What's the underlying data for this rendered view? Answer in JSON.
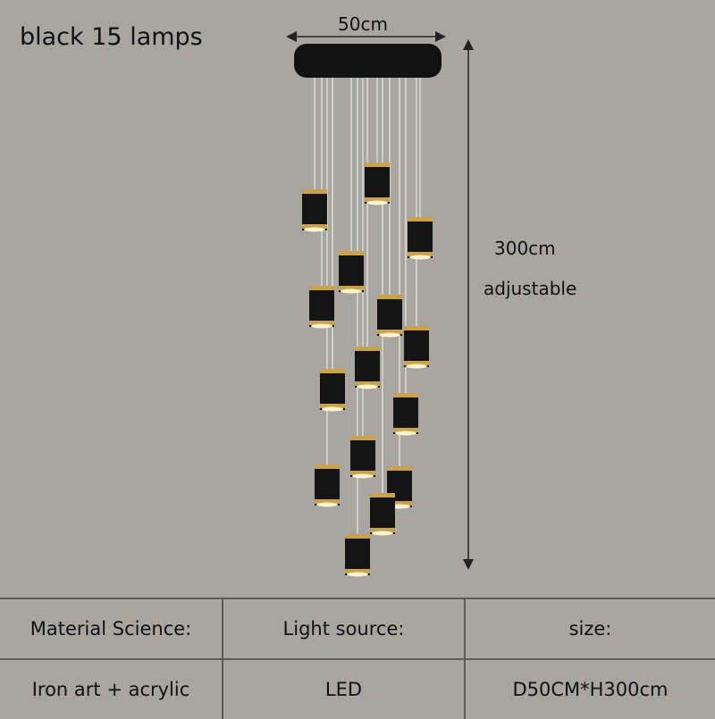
{
  "title": "black 15 lamps",
  "dimensions": {
    "width": "50cm",
    "height": "300cm",
    "height_note": "adjustable"
  },
  "product": {
    "color": "#141414",
    "accent_color": "#c9a24a",
    "lamp_count": 15
  },
  "table": {
    "headers": [
      "Material Science:",
      "Light source:",
      "size:"
    ],
    "values": [
      "Iron art + acrylic",
      "LED",
      "D50CM*H300cm"
    ]
  }
}
